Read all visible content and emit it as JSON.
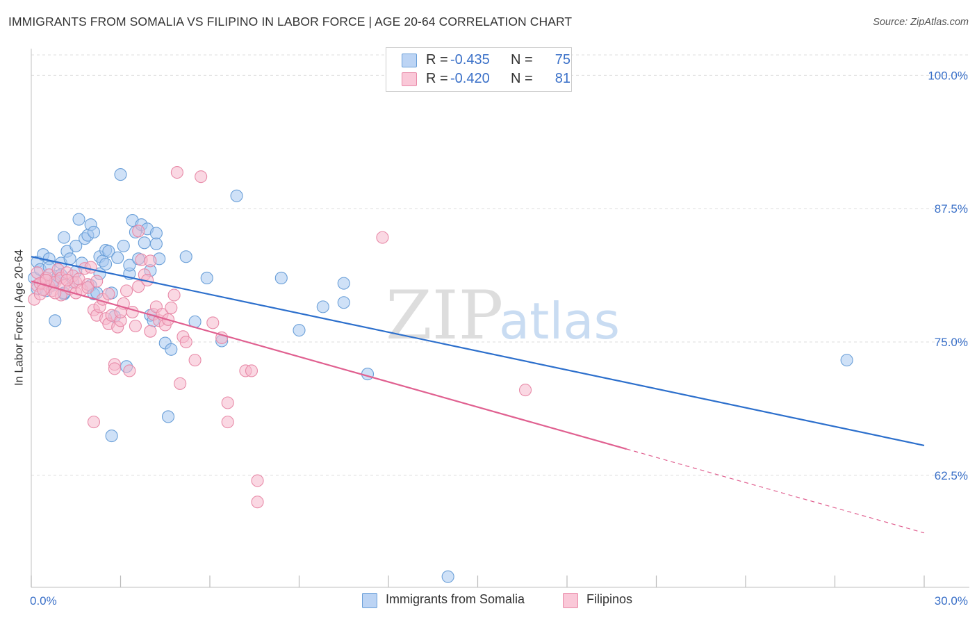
{
  "title": "IMMIGRANTS FROM SOMALIA VS FILIPINO IN LABOR FORCE | AGE 20-64 CORRELATION CHART",
  "source": "Source: ZipAtlas.com",
  "watermark": {
    "zip": "ZIP",
    "atlas": "atlas"
  },
  "colors": {
    "somalia_fill": "#a8c8f0",
    "somalia_stroke": "#6a9fd8",
    "somalia_line": "#2c6fcc",
    "filipino_fill": "#f6b8cc",
    "filipino_stroke": "#e88aa8",
    "filipino_line": "#e06090",
    "value_text": "#3a70c8",
    "grid": "#dddddd"
  },
  "legend": {
    "r_label": "R =",
    "n_label": "N =",
    "series": [
      {
        "r_value": "-0.435",
        "n_value": "75"
      },
      {
        "r_value": "-0.420",
        "n_value": "81"
      }
    ]
  },
  "bottom_legend": [
    "Immigrants from Somalia",
    "Filipinos"
  ],
  "chart_data": {
    "type": "scatter",
    "title": "IMMIGRANTS FROM SOMALIA VS FILIPINO IN LABOR FORCE | AGE 20-64 CORRELATION CHART",
    "xlabel": "",
    "ylabel": "In Labor Force | Age 20-64",
    "xlim": [
      0,
      30
    ],
    "ylim": [
      52,
      102.5
    ],
    "x_tick_labels": [
      "0.0%",
      "30.0%"
    ],
    "y_ticks": [
      62.5,
      75.0,
      87.5,
      100.0
    ],
    "y_tick_labels": [
      "62.5%",
      "75.0%",
      "87.5%",
      "100.0%"
    ],
    "grid": true,
    "legend_position": "top-center",
    "series": [
      {
        "name": "Immigrants from Somalia",
        "r": -0.435,
        "n": 75,
        "trend": {
          "x0": 0,
          "y0": 83.0,
          "x1": 30,
          "y1": 65.3
        },
        "points": [
          [
            0.1,
            81.0
          ],
          [
            0.2,
            82.5
          ],
          [
            0.2,
            80.0
          ],
          [
            0.3,
            81.8
          ],
          [
            0.4,
            83.2
          ],
          [
            0.5,
            79.8
          ],
          [
            0.5,
            81.0
          ],
          [
            0.6,
            82.8
          ],
          [
            0.6,
            82.0
          ],
          [
            0.7,
            80.3
          ],
          [
            0.8,
            77.0
          ],
          [
            0.8,
            80.8
          ],
          [
            0.9,
            81.2
          ],
          [
            1.0,
            82.4
          ],
          [
            1.0,
            81.3
          ],
          [
            1.1,
            79.5
          ],
          [
            1.1,
            84.8
          ],
          [
            1.2,
            83.5
          ],
          [
            1.3,
            82.8
          ],
          [
            1.4,
            80.6
          ],
          [
            1.5,
            84.0
          ],
          [
            1.5,
            81.6
          ],
          [
            1.6,
            86.5
          ],
          [
            1.7,
            82.4
          ],
          [
            1.8,
            84.7
          ],
          [
            1.9,
            85.0
          ],
          [
            2.0,
            86.0
          ],
          [
            2.0,
            80.3
          ],
          [
            2.1,
            79.5
          ],
          [
            2.1,
            85.3
          ],
          [
            2.2,
            79.6
          ],
          [
            2.3,
            83.0
          ],
          [
            2.3,
            81.4
          ],
          [
            2.4,
            82.6
          ],
          [
            2.5,
            83.6
          ],
          [
            2.5,
            82.3
          ],
          [
            2.6,
            83.5
          ],
          [
            2.7,
            79.6
          ],
          [
            2.8,
            77.4
          ],
          [
            2.9,
            82.9
          ],
          [
            3.0,
            90.7
          ],
          [
            3.1,
            84.0
          ],
          [
            3.2,
            72.7
          ],
          [
            3.3,
            81.4
          ],
          [
            3.3,
            82.2
          ],
          [
            3.4,
            86.4
          ],
          [
            3.5,
            85.3
          ],
          [
            3.6,
            82.8
          ],
          [
            3.7,
            86.0
          ],
          [
            3.8,
            84.3
          ],
          [
            3.9,
            85.6
          ],
          [
            4.0,
            77.5
          ],
          [
            4.0,
            81.7
          ],
          [
            4.1,
            77.0
          ],
          [
            4.2,
            85.2
          ],
          [
            4.2,
            84.2
          ],
          [
            4.3,
            82.8
          ],
          [
            4.5,
            74.9
          ],
          [
            4.6,
            68.0
          ],
          [
            4.7,
            74.3
          ],
          [
            5.2,
            83.0
          ],
          [
            5.5,
            76.9
          ],
          [
            5.9,
            81.0
          ],
          [
            6.4,
            75.1
          ],
          [
            6.9,
            88.7
          ],
          [
            8.4,
            81.0
          ],
          [
            9.0,
            76.1
          ],
          [
            9.8,
            78.3
          ],
          [
            10.5,
            78.7
          ],
          [
            10.5,
            80.5
          ],
          [
            11.3,
            72.0
          ],
          [
            14.0,
            53.0
          ],
          [
            27.4,
            73.3
          ],
          [
            2.7,
            66.2
          ],
          [
            1.1,
            79.6
          ]
        ]
      },
      {
        "name": "Filipinos",
        "r": -0.42,
        "n": 81,
        "trend": {
          "x0": 0,
          "y0": 80.7,
          "x1": 30,
          "y1": 57.1,
          "solid_until_x": 20.0
        },
        "points": [
          [
            0.1,
            79.0
          ],
          [
            0.2,
            80.3
          ],
          [
            0.2,
            81.5
          ],
          [
            0.3,
            79.5
          ],
          [
            0.4,
            80.5
          ],
          [
            0.5,
            81.0
          ],
          [
            0.6,
            80.2
          ],
          [
            0.6,
            81.3
          ],
          [
            0.7,
            79.8
          ],
          [
            0.8,
            80.6
          ],
          [
            0.9,
            81.8
          ],
          [
            1.0,
            81.0
          ],
          [
            1.0,
            79.4
          ],
          [
            1.1,
            80.3
          ],
          [
            1.2,
            81.5
          ],
          [
            1.3,
            80.0
          ],
          [
            1.4,
            81.2
          ],
          [
            1.5,
            79.6
          ],
          [
            1.5,
            80.6
          ],
          [
            1.6,
            80.9
          ],
          [
            1.7,
            79.9
          ],
          [
            1.8,
            81.9
          ],
          [
            1.9,
            80.4
          ],
          [
            2.0,
            82.0
          ],
          [
            2.1,
            78.0
          ],
          [
            2.2,
            77.5
          ],
          [
            2.3,
            78.3
          ],
          [
            2.4,
            79.0
          ],
          [
            2.5,
            77.2
          ],
          [
            2.6,
            76.7
          ],
          [
            2.7,
            77.5
          ],
          [
            2.8,
            72.9
          ],
          [
            2.8,
            72.5
          ],
          [
            2.9,
            76.4
          ],
          [
            3.0,
            77.0
          ],
          [
            3.1,
            78.6
          ],
          [
            3.2,
            79.8
          ],
          [
            3.3,
            72.3
          ],
          [
            3.4,
            77.8
          ],
          [
            3.5,
            76.5
          ],
          [
            3.6,
            80.2
          ],
          [
            3.7,
            82.7
          ],
          [
            3.8,
            81.3
          ],
          [
            3.9,
            80.8
          ],
          [
            4.0,
            82.6
          ],
          [
            4.1,
            77.6
          ],
          [
            4.2,
            78.3
          ],
          [
            4.3,
            77.0
          ],
          [
            4.4,
            77.6
          ],
          [
            4.5,
            76.6
          ],
          [
            4.6,
            77.1
          ],
          [
            4.7,
            78.2
          ],
          [
            4.8,
            79.4
          ],
          [
            4.9,
            90.9
          ],
          [
            5.0,
            71.1
          ],
          [
            5.1,
            75.5
          ],
          [
            5.2,
            75.0
          ],
          [
            5.5,
            73.3
          ],
          [
            5.7,
            90.5
          ],
          [
            6.1,
            76.8
          ],
          [
            6.4,
            75.4
          ],
          [
            6.6,
            67.5
          ],
          [
            6.6,
            69.3
          ],
          [
            7.2,
            72.3
          ],
          [
            7.4,
            72.3
          ],
          [
            7.6,
            62.0
          ],
          [
            7.6,
            60.0
          ],
          [
            11.8,
            84.8
          ],
          [
            16.6,
            70.5
          ],
          [
            2.1,
            67.5
          ],
          [
            0.3,
            80.5
          ],
          [
            0.5,
            80.8
          ],
          [
            0.8,
            79.6
          ],
          [
            1.2,
            80.8
          ],
          [
            2.6,
            79.5
          ],
          [
            3.0,
            77.8
          ],
          [
            3.6,
            85.4
          ],
          [
            0.4,
            79.9
          ],
          [
            1.9,
            80.1
          ],
          [
            2.2,
            80.7
          ],
          [
            4.0,
            76.0
          ]
        ]
      }
    ]
  }
}
